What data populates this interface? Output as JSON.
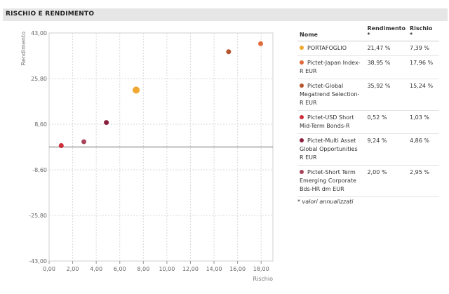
{
  "section": {
    "title": "RISCHIO E RENDIMENTO"
  },
  "chart_data": {
    "type": "scatter",
    "title": "",
    "xlabel": "Rischio",
    "ylabel": "Rendimento",
    "xlim": [
      0,
      19
    ],
    "ylim": [
      -43,
      43
    ],
    "x_ticks": [
      "0,00",
      "2,00",
      "4,00",
      "6,00",
      "8,00",
      "10,00",
      "12,00",
      "14,00",
      "16,00",
      "18,00"
    ],
    "x_tick_values": [
      0,
      2,
      4,
      6,
      8,
      10,
      12,
      14,
      16,
      18
    ],
    "y_ticks": [
      "43,00",
      "25,80",
      "8,60",
      "-8,60",
      "-25,80",
      "-43,00"
    ],
    "y_tick_values": [
      43,
      25.8,
      8.6,
      -8.6,
      -25.8,
      -43
    ],
    "grid": true,
    "points": [
      {
        "name": "PORTAFOGLIO",
        "x": 7.39,
        "y": 21.47,
        "color": "#f0a830",
        "highlight": true
      },
      {
        "name": "Pictet-Japan Index-R EUR",
        "x": 17.96,
        "y": 38.95,
        "color": "#e06a3c"
      },
      {
        "name": "Pictet-Global Megatrend Selection-R EUR",
        "x": 15.24,
        "y": 35.92,
        "color": "#b5562e"
      },
      {
        "name": "Pictet-USD Short Mid-Term Bonds-R",
        "x": 1.03,
        "y": 0.52,
        "color": "#cc2e3a"
      },
      {
        "name": "Pictet-Multi Asset Global Opportunities R EUR",
        "x": 4.86,
        "y": 9.24,
        "color": "#8a1f3e"
      },
      {
        "name": "Pictet-Short Term Emerging Corporate Bds-HR dm EUR",
        "x": 2.95,
        "y": 2.0,
        "color": "#a8445a"
      }
    ]
  },
  "table": {
    "headers": {
      "name": "Nome",
      "rendimento": "Rendimento *",
      "rischio": "Rischio *"
    },
    "rows": [
      {
        "name": "PORTAFOGLIO",
        "rendimento": "21,47 %",
        "rischio": "7,39 %",
        "color": "#f0a830"
      },
      {
        "name": "Pictet-Japan Index-R EUR",
        "rendimento": "38,95 %",
        "rischio": "17,96 %",
        "color": "#e06a3c"
      },
      {
        "name": "Pictet-Global Megatrend Selection-R EUR",
        "rendimento": "35,92 %",
        "rischio": "15,24 %",
        "color": "#b5562e"
      },
      {
        "name": "Pictet-USD Short Mid-Term Bonds-R",
        "rendimento": "0,52 %",
        "rischio": "1,03 %",
        "color": "#cc2e3a"
      },
      {
        "name": "Pictet-Multi Asset Global Opportunities R EUR",
        "rendimento": "9,24 %",
        "rischio": "4,86 %",
        "color": "#8a1f3e"
      },
      {
        "name": "Pictet-Short Term Emerging Corporate Bds-HR dm EUR",
        "rendimento": "2,00 %",
        "rischio": "2,95 %",
        "color": "#a8445a"
      }
    ],
    "footnote": "* valori annualizzati"
  }
}
